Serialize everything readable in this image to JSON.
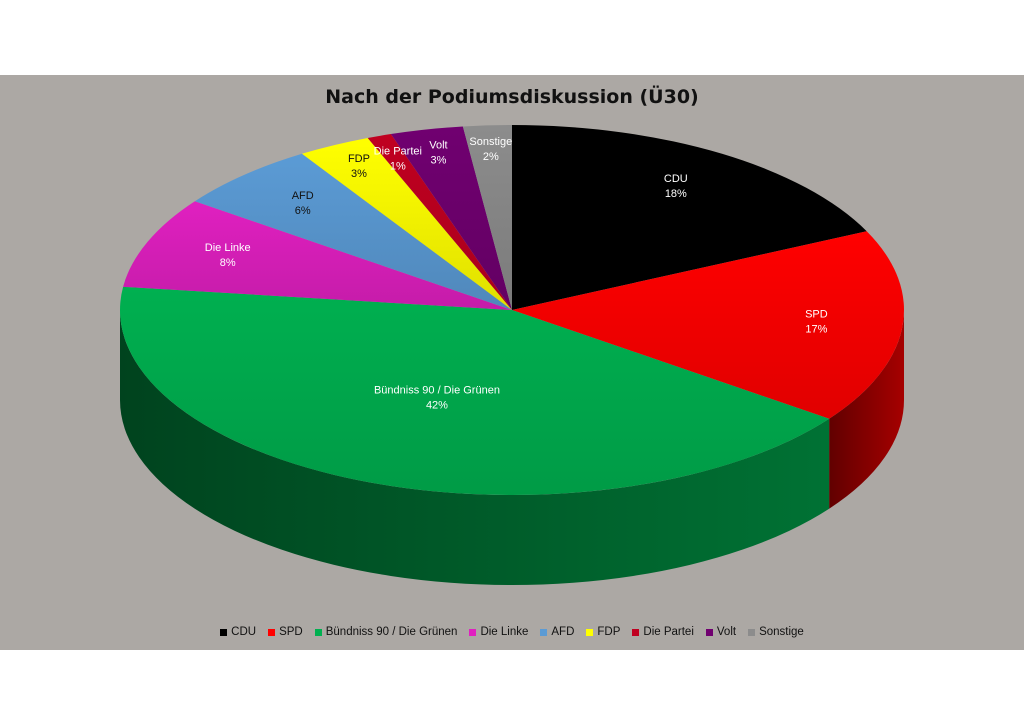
{
  "chart_data": {
    "type": "pie",
    "title": "Nach der Podiumsdiskussion (Ü30)",
    "legend_position": "bottom",
    "slices": [
      {
        "label": "CDU",
        "value": 18,
        "display": "18%",
        "color": "#000000",
        "label_color": "#ffffff"
      },
      {
        "label": "SPD",
        "value": 17,
        "display": "17%",
        "color": "#ff0000",
        "label_color": "#ffffff"
      },
      {
        "label": "Bündniss 90 / Die Grünen",
        "value": 42,
        "display": "42%",
        "color": "#00b050",
        "label_color": "#ffffff"
      },
      {
        "label": "Die Linke",
        "value": 8,
        "display": "8%",
        "color": "#e020c0",
        "label_color": "#ffffff"
      },
      {
        "label": "AFD",
        "value": 6,
        "display": "6%",
        "color": "#5b9bd5",
        "label_color": "#111111"
      },
      {
        "label": "FDP",
        "value": 3,
        "display": "3%",
        "color": "#ffff00",
        "label_color": "#111111"
      },
      {
        "label": "Die Partei",
        "value": 1,
        "display": "1%",
        "color": "#c00020",
        "label_color": "#ffffff"
      },
      {
        "label": "Volt",
        "value": 3,
        "display": "3%",
        "color": "#700070",
        "label_color": "#ffffff"
      },
      {
        "label": "Sonstige",
        "value": 2,
        "display": "2%",
        "color": "#8c8c8c",
        "label_color": "#ffffff"
      }
    ]
  }
}
